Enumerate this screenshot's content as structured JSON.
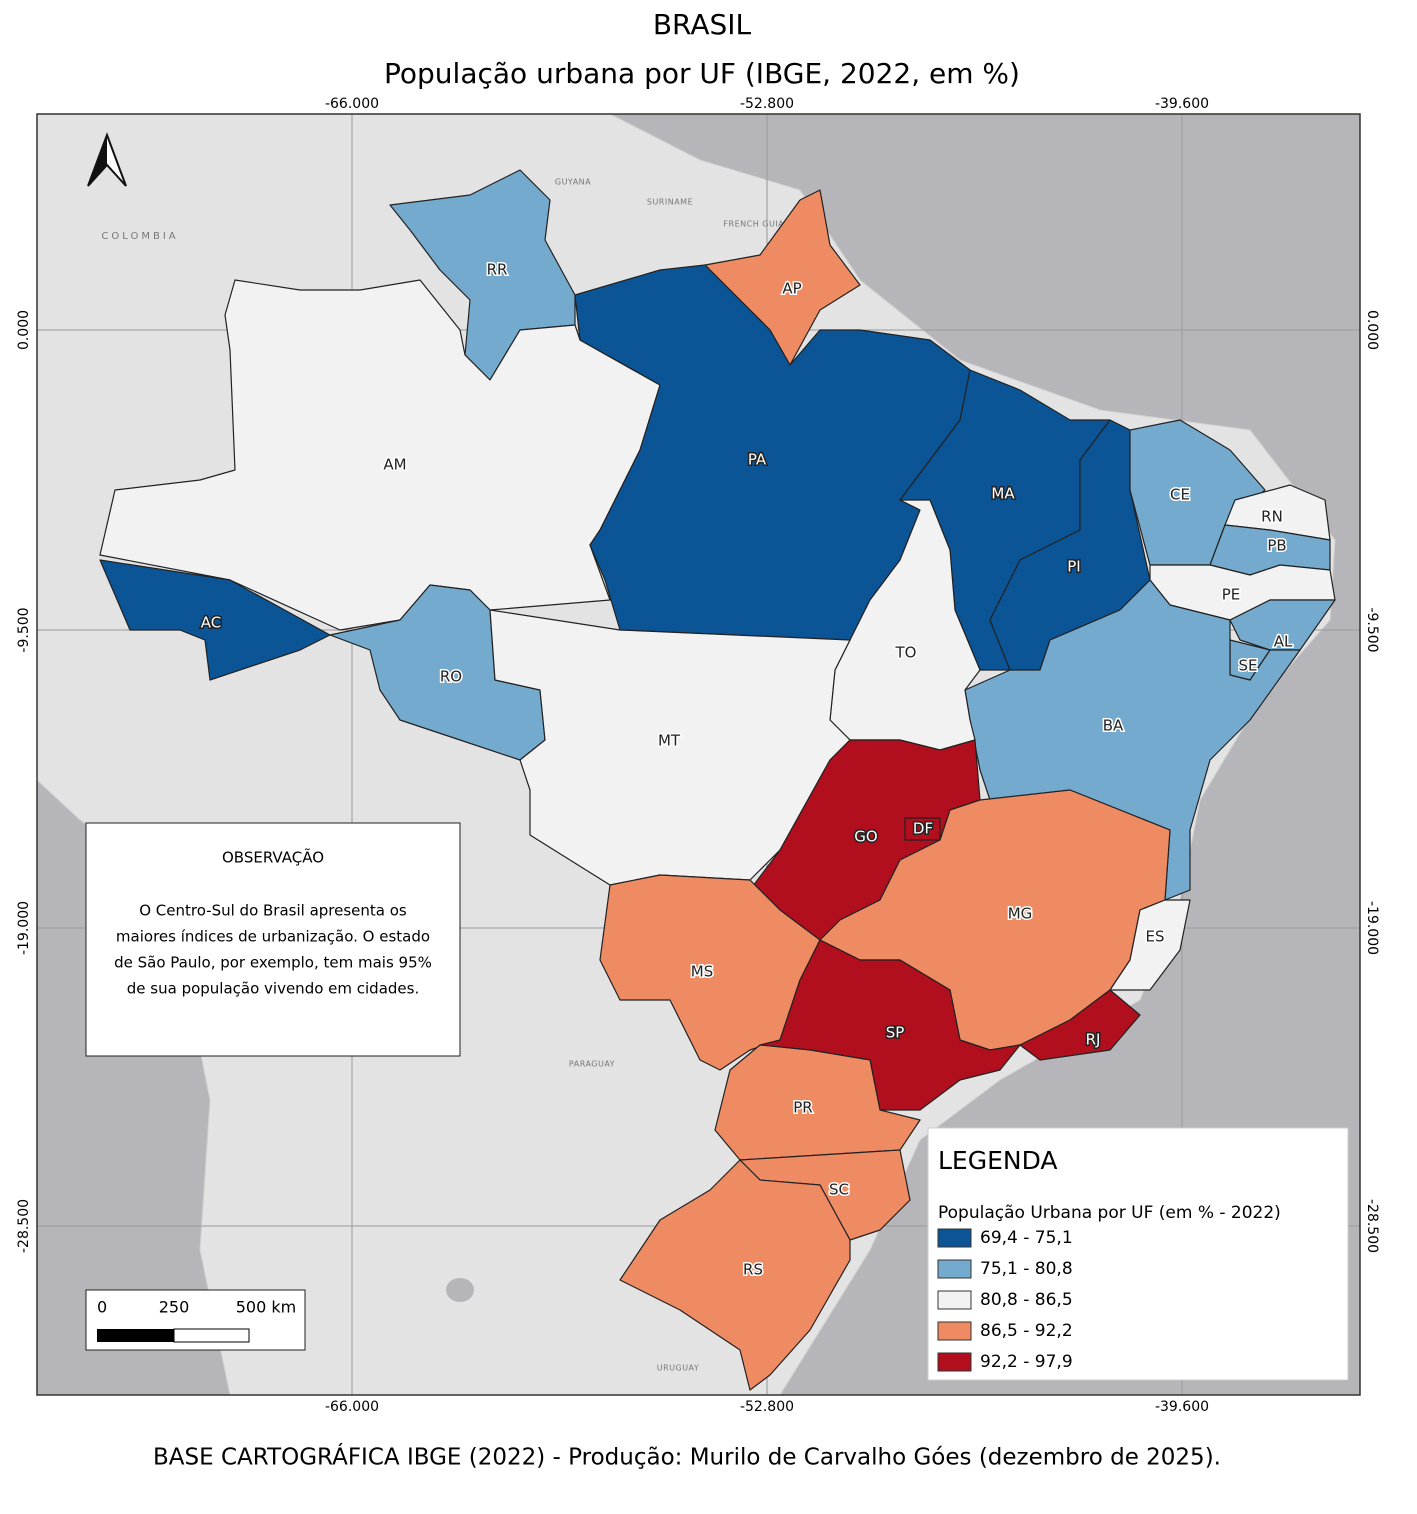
{
  "header": {
    "title": "BRASIL",
    "subtitle": "População urbana por UF (IBGE, 2022, em %)"
  },
  "graticule": {
    "longitudes": [
      "-66.000",
      "-52.800",
      "-39.600"
    ],
    "latitudes": [
      "0.000",
      "-9.500",
      "-19.000",
      "-28.500"
    ]
  },
  "countries": [
    "COLOMBIA",
    "GUYANA",
    "SURINAME",
    "FRENCH GUIANA",
    "PARAGUAY",
    "URUGUAY"
  ],
  "states": [
    {
      "label": "RR",
      "color": "#74aacd"
    },
    {
      "label": "AP",
      "color": "#ef8b63"
    },
    {
      "label": "AM",
      "color": "#f2f2f2"
    },
    {
      "label": "PA",
      "color": "#0b5597"
    },
    {
      "label": "MA",
      "color": "#0b5597"
    },
    {
      "label": "PI",
      "color": "#0b5597"
    },
    {
      "label": "CE",
      "color": "#74aacd"
    },
    {
      "label": "RN",
      "color": "#f2f2f2"
    },
    {
      "label": "PB",
      "color": "#74aacd"
    },
    {
      "label": "PE",
      "color": "#f2f2f2"
    },
    {
      "label": "AL",
      "color": "#74aacd"
    },
    {
      "label": "SE",
      "color": "#74aacd"
    },
    {
      "label": "BA",
      "color": "#74aacd"
    },
    {
      "label": "TO",
      "color": "#f2f2f2"
    },
    {
      "label": "AC",
      "color": "#0b5597"
    },
    {
      "label": "RO",
      "color": "#74aacd"
    },
    {
      "label": "MT",
      "color": "#f2f2f2"
    },
    {
      "label": "GO",
      "color": "#b20f1e"
    },
    {
      "label": "DF",
      "color": "#b20f1e"
    },
    {
      "label": "MS",
      "color": "#ef8b63"
    },
    {
      "label": "MG",
      "color": "#ef8b63"
    },
    {
      "label": "ES",
      "color": "#f2f2f2"
    },
    {
      "label": "SP",
      "color": "#b20f1e"
    },
    {
      "label": "RJ",
      "color": "#b20f1e"
    },
    {
      "label": "PR",
      "color": "#ef8b63"
    },
    {
      "label": "SC",
      "color": "#ef8b63"
    },
    {
      "label": "RS",
      "color": "#ef8b63"
    }
  ],
  "observation": {
    "title": "OBSERVAÇÃO",
    "lines": [
      "O Centro-Sul do Brasil apresenta os",
      "maiores índices de urbanização. O estado",
      "de São Paulo, por exemplo, tem mais 95%",
      "de sua população vivendo em cidades."
    ]
  },
  "legend": {
    "title": "LEGENDA",
    "subtitle": "População Urbana por UF (em % - 2022)",
    "items": [
      {
        "label": "69,4 - 75,1",
        "color": "#0b5597"
      },
      {
        "label": "75,1 - 80,8",
        "color": "#74aacd"
      },
      {
        "label": "80,8 - 86,5",
        "color": "#f2f2f2"
      },
      {
        "label": "86,5 - 92,2",
        "color": "#ef8b63"
      },
      {
        "label": "92,2 - 97,9",
        "color": "#b20f1e"
      }
    ]
  },
  "scale_bar": {
    "labels": [
      "0",
      "250",
      "500 km"
    ]
  },
  "footer": "BASE CARTOGRÁFICA IBGE (2022) - Produção: Murilo de Carvalho Góes (dezembro de 2025)."
}
